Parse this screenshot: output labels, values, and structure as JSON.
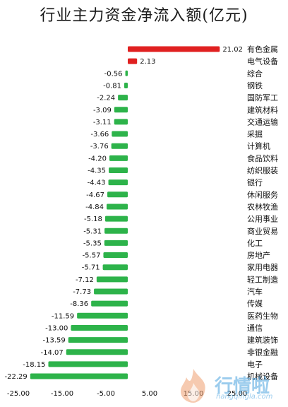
{
  "chart_data": {
    "type": "bar",
    "orientation": "horizontal",
    "title": "行业主力资金净流入额(亿元)",
    "categories": [
      "有色金属",
      "电气设备",
      "综合",
      "钢铁",
      "国防军工",
      "建筑材料",
      "交通运输",
      "采掘",
      "计算机",
      "食品饮料",
      "纺织服装",
      "银行",
      "休闲服务",
      "农林牧渔",
      "公用事业",
      "商业贸易",
      "化工",
      "房地产",
      "家用电器",
      "轻工制造",
      "汽车",
      "传媒",
      "医药生物",
      "通信",
      "建筑装饰",
      "非银金融",
      "电子",
      "机械设备"
    ],
    "values": [
      21.02,
      2.13,
      -0.56,
      -0.81,
      -2.24,
      -3.09,
      -3.11,
      -3.66,
      -3.76,
      -4.2,
      -4.35,
      -4.43,
      -4.67,
      -4.84,
      -5.18,
      -5.31,
      -5.35,
      -5.57,
      -5.71,
      -7.12,
      -7.73,
      -8.36,
      -11.59,
      -13.0,
      -13.59,
      -14.07,
      -18.15,
      -22.29
    ],
    "value_labels": [
      "21.02",
      "2.13",
      "-0.56",
      "-0.81",
      "-2.24",
      "-3.09",
      "-3.11",
      "-3.66",
      "-3.76",
      "-4.20",
      "-4.35",
      "-4.43",
      "-4.67",
      "-4.84",
      "-5.18",
      "-5.31",
      "-5.35",
      "-5.57",
      "-5.71",
      "-7.12",
      "-7.73",
      "-8.36",
      "-11.59",
      "-13.00",
      "-13.59",
      "-14.07",
      "-18.15",
      "-22.29"
    ],
    "xticks": [
      "-25.00",
      "-15.00",
      "-5.00",
      "5.00",
      "15.00",
      "25.00"
    ],
    "xtick_values": [
      -25,
      -15,
      -5,
      5,
      15,
      25
    ],
    "xlim": [
      -25,
      25
    ],
    "grid": false,
    "colors": {
      "positive": "#e02020",
      "negative": "#2db34a"
    }
  },
  "watermark": {
    "text": "行情啦",
    "sub": "hangqingla.com"
  }
}
